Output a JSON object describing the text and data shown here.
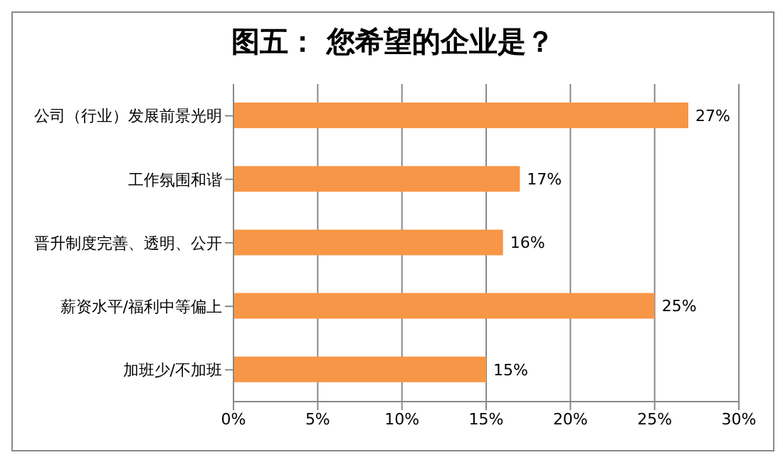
{
  "chart_data": {
    "type": "bar",
    "orientation": "horizontal",
    "title": "图五： 您希望的企业是？",
    "categories": [
      "公司（行业）发展前景光明",
      "工作氛围和谐",
      "晋升制度完善、透明、公开",
      "薪资水平/福利中等偏上",
      "加班少/不加班"
    ],
    "values": [
      27,
      17,
      16,
      25,
      15
    ],
    "value_labels": [
      "27%",
      "17%",
      "16%",
      "25%",
      "15%"
    ],
    "color": "#f79646",
    "xlim": [
      0,
      30
    ],
    "xticks": [
      {
        "value": 0,
        "label": "0%"
      },
      {
        "value": 5,
        "label": "5%"
      },
      {
        "value": 10,
        "label": "10%"
      },
      {
        "value": 15,
        "label": "15%"
      },
      {
        "value": 20,
        "label": "20%"
      },
      {
        "value": 25,
        "label": "25%"
      },
      {
        "value": 30,
        "label": "30%"
      }
    ],
    "grid": "x",
    "legend": false
  }
}
